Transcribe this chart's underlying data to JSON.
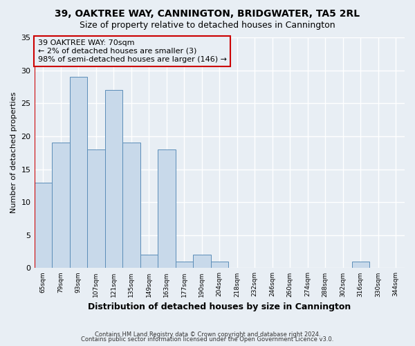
{
  "title1": "39, OAKTREE WAY, CANNINGTON, BRIDGWATER, TA5 2RL",
  "title2": "Size of property relative to detached houses in Cannington",
  "xlabel": "Distribution of detached houses by size in Cannington",
  "ylabel": "Number of detached properties",
  "footer1": "Contains HM Land Registry data © Crown copyright and database right 2024.",
  "footer2": "Contains public sector information licensed under the Open Government Licence v3.0.",
  "annotation_line1": "39 OAKTREE WAY: 70sqm",
  "annotation_line2": "← 2% of detached houses are smaller (3)",
  "annotation_line3": "98% of semi-detached houses are larger (146) →",
  "bar_values": [
    13,
    19,
    29,
    18,
    27,
    19,
    2,
    18,
    1,
    2,
    1,
    0,
    0,
    0,
    0,
    0,
    0,
    0,
    1,
    0,
    0
  ],
  "bin_labels": [
    "65sqm",
    "79sqm",
    "93sqm",
    "107sqm",
    "121sqm",
    "135sqm",
    "149sqm",
    "163sqm",
    "177sqm",
    "190sqm",
    "204sqm",
    "218sqm",
    "232sqm",
    "246sqm",
    "260sqm",
    "274sqm",
    "288sqm",
    "302sqm",
    "316sqm",
    "330sqm",
    "344sqm"
  ],
  "bar_color": "#c8d9ea",
  "bar_edge_color": "#5b8db8",
  "highlight_line_color": "#cc0000",
  "background_color": "#e8eef4",
  "plot_bg_color": "#e8eef4",
  "grid_color": "#ffffff",
  "ylim": [
    0,
    35
  ],
  "yticks": [
    0,
    5,
    10,
    15,
    20,
    25,
    30,
    35
  ],
  "annotation_box_edge_color": "#cc0000",
  "title1_fontsize": 10,
  "title2_fontsize": 9
}
